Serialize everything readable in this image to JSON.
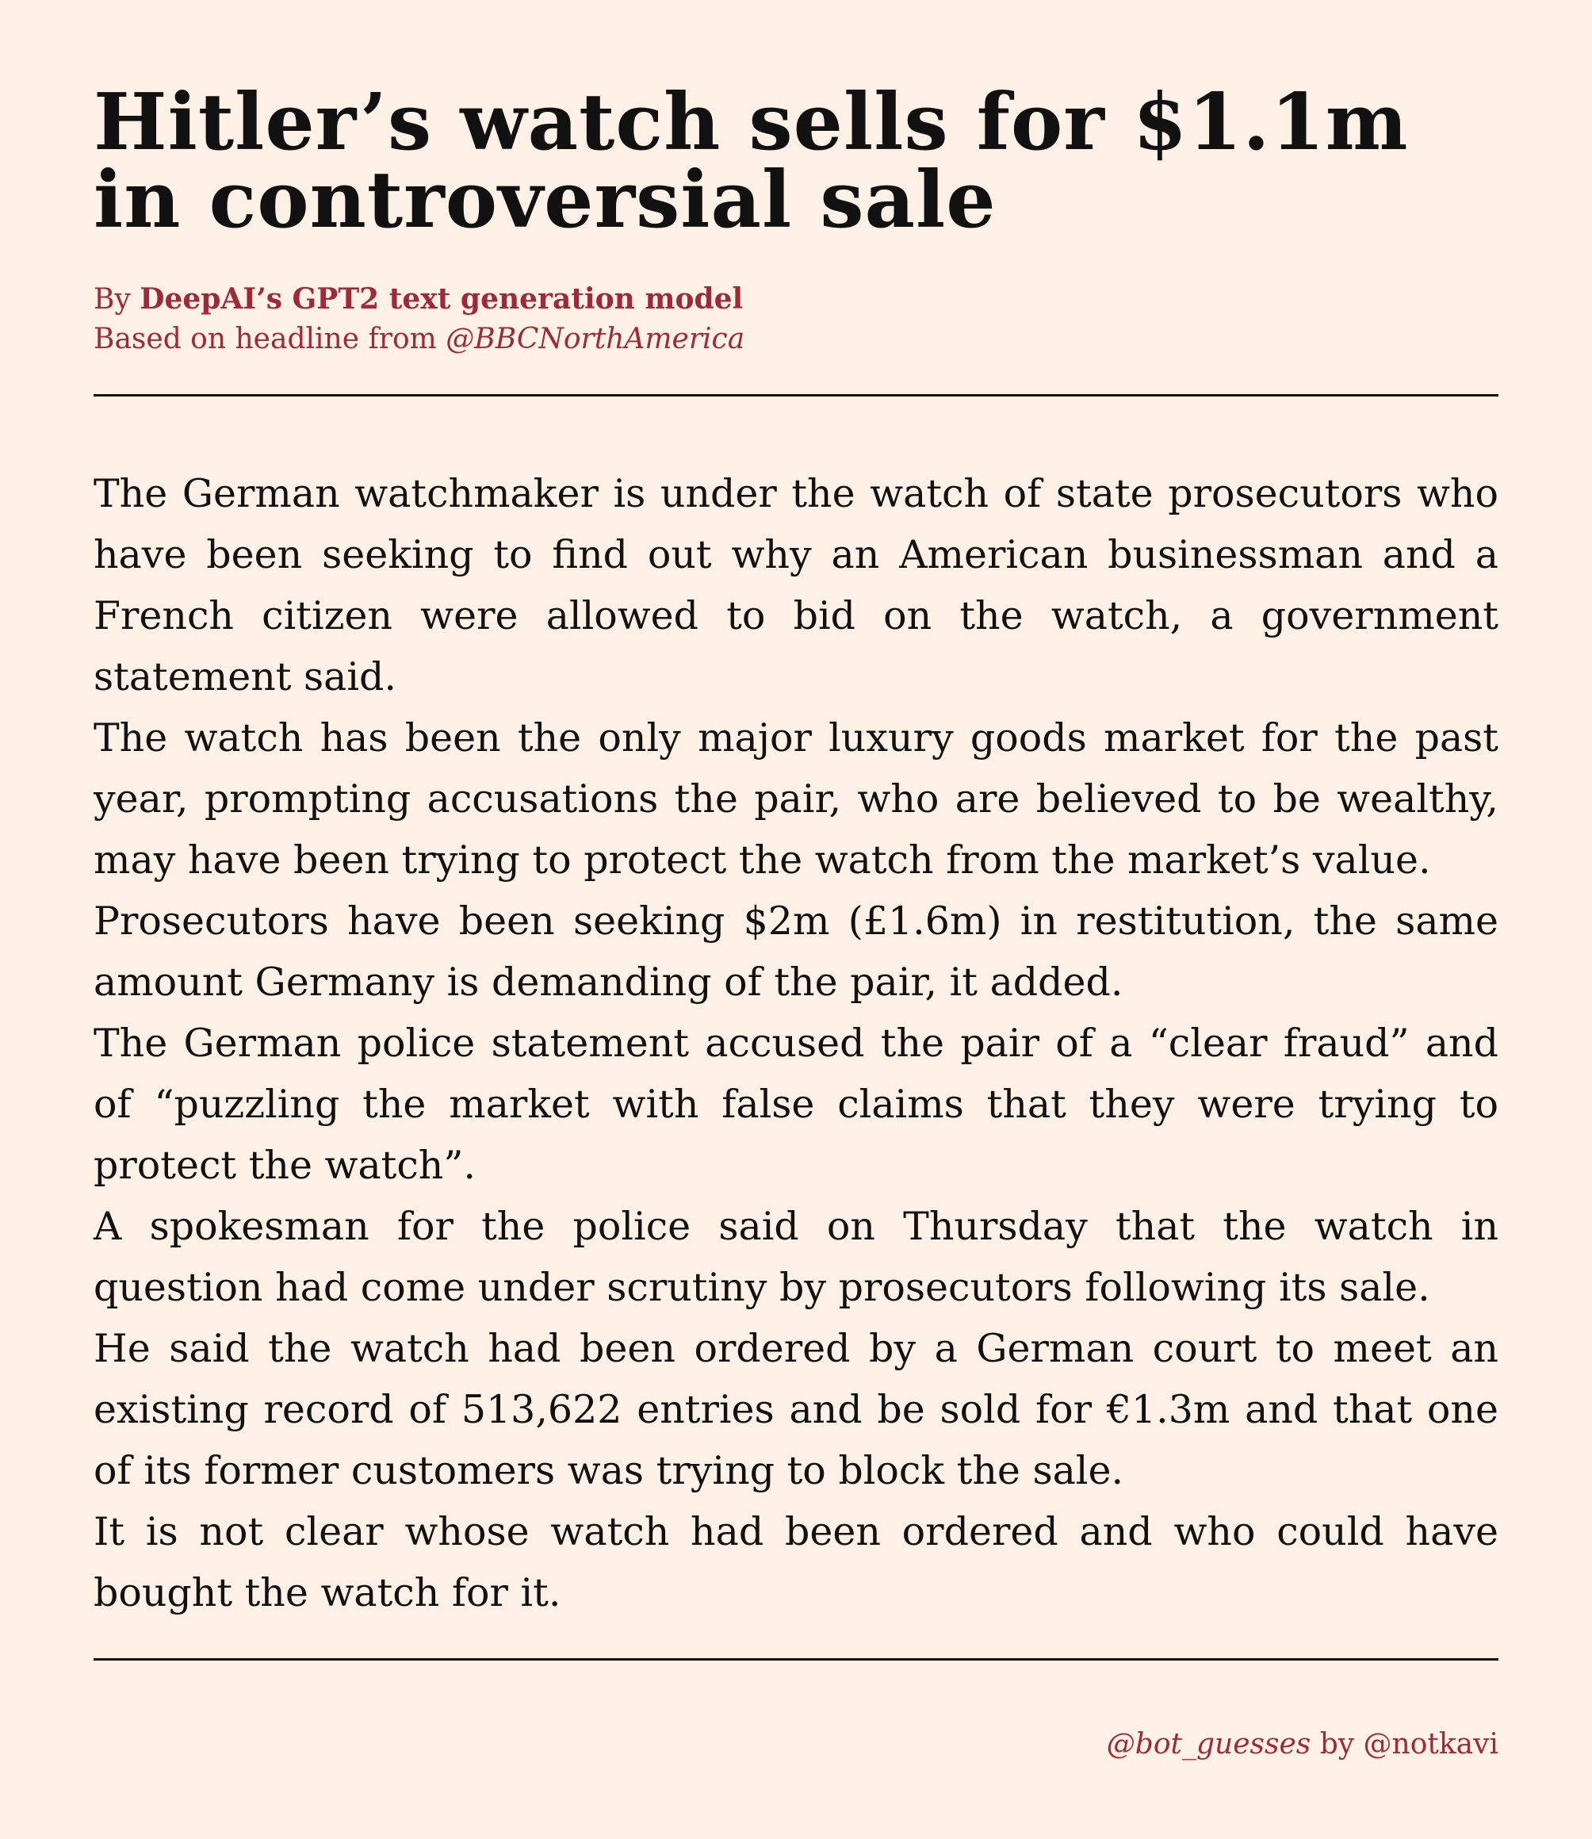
{
  "headline": "Hitler’s watch sells for $1.1m in controversial sale",
  "byline": {
    "prefix": "By ",
    "author": "DeepAI’s GPT2 text generation model",
    "source_prefix": "Based on headline from ",
    "source_handle": "@BBCNorthAmerica"
  },
  "article": {
    "paragraphs": [
      "The German watchmaker is under the watch of state prosecutors who have been seeking to find out why an American businessman and a French citizen were allowed to bid on the watch, a government statement said.",
      "The watch has been the only major luxury goods market for the past year, prompting accusations the pair, who are believed to be wealthy, may have been trying to protect the watch from the market’s value.",
      "Prosecutors have been seeking $2m (£1.6m) in restitution, the same amount Germany is demanding of the pair, it added.",
      "The German police statement accused the pair of a “clear fraud” and of “puzzling the market with false claims that they were trying to protect the watch”.",
      "A spokesman for the police said on Thursday that the watch in question had come under scrutiny by prosecutors following its sale.",
      "He said the watch had been ordered by a German court to meet an existing record of 513,622 entries and be sold for €1.3m and that one of its former customers was trying to block the sale.",
      "It is not clear whose watch had been ordered and who could have bought the watch for it."
    ]
  },
  "footer": {
    "bot_handle": "@bot_guesses",
    "by_text": " by ",
    "author_handle": "@notkavi"
  },
  "colors": {
    "background": "#fff1e6",
    "text": "#111111",
    "accent": "#9e2a38"
  }
}
